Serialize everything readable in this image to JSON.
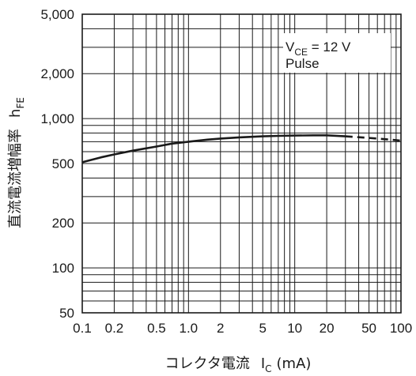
{
  "chart_data": {
    "type": "line",
    "x_scale": "log",
    "y_scale": "log",
    "xlim": [
      0.1,
      100
    ],
    "ylim": [
      50,
      5000
    ],
    "grid": true,
    "x_ticks": [
      "0.1",
      "0.2",
      "0.5",
      "1.0",
      "2",
      "5",
      "10",
      "20",
      "50",
      "100"
    ],
    "y_ticks": [
      "50",
      "100",
      "200",
      "500",
      "1,000",
      "2,000",
      "5,000"
    ],
    "xlabel": {
      "text": "コレクタ電流",
      "symbol": "I",
      "sub": "C",
      "unit": "(mA)"
    },
    "ylabel": {
      "text": "直流電流増幅率",
      "symbol": "h",
      "sub": "FE"
    },
    "annotation": {
      "line1_prefix": "V",
      "line1_sub": "CE",
      "line1_suffix": " = 12 V",
      "line2": "Pulse"
    },
    "series": [
      {
        "x": [
          0.1,
          0.15,
          0.2,
          0.3,
          0.5,
          0.7,
          1.0,
          1.5,
          2,
          3,
          5,
          7,
          10,
          15,
          20,
          30,
          50,
          70,
          100
        ],
        "y": [
          510,
          550,
          575,
          610,
          650,
          680,
          700,
          722,
          735,
          748,
          760,
          766,
          770,
          772,
          772,
          760,
          742,
          728,
          712
        ],
        "dashed_from_x": 30
      }
    ]
  }
}
